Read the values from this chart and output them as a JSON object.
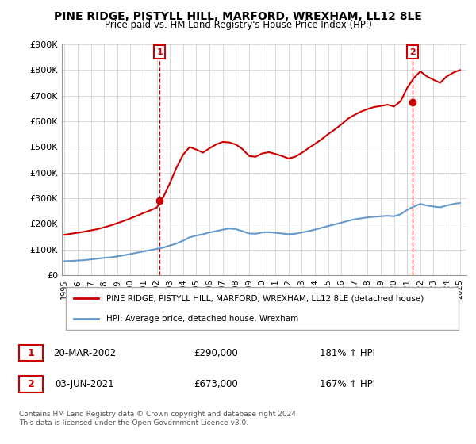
{
  "title": "PINE RIDGE, PISTYLL HILL, MARFORD, WREXHAM, LL12 8LE",
  "subtitle": "Price paid vs. HM Land Registry's House Price Index (HPI)",
  "legend_line1": "PINE RIDGE, PISTYLL HILL, MARFORD, WREXHAM, LL12 8LE (detached house)",
  "legend_line2": "HPI: Average price, detached house, Wrexham",
  "annotation1_label": "1",
  "annotation1_date": "20-MAR-2002",
  "annotation1_price": "£290,000",
  "annotation1_hpi": "181% ↑ HPI",
  "annotation2_label": "2",
  "annotation2_date": "03-JUN-2021",
  "annotation2_price": "£673,000",
  "annotation2_hpi": "167% ↑ HPI",
  "footer": "Contains HM Land Registry data © Crown copyright and database right 2024.\nThis data is licensed under the Open Government Licence v3.0.",
  "hpi_color": "#6699cc",
  "price_color": "#cc0000",
  "annotation_color": "#cc0000",
  "background_color": "#ffffff",
  "grid_color": "#cccccc",
  "ylim": [
    0,
    900000
  ],
  "yticks": [
    0,
    100000,
    200000,
    300000,
    400000,
    500000,
    600000,
    700000,
    800000,
    900000
  ],
  "ytick_labels": [
    "£0",
    "£100K",
    "£200K",
    "£300K",
    "£400K",
    "£500K",
    "£600K",
    "£700K",
    "£800K",
    "£900K"
  ],
  "year_start": 1995,
  "year_end": 2025,
  "sale1_year": 2002.22,
  "sale1_price": 290000,
  "sale2_year": 2021.42,
  "sale2_price": 673000,
  "hpi_years": [
    1995,
    1995.5,
    1996,
    1996.5,
    1997,
    1997.5,
    1998,
    1998.5,
    1999,
    1999.5,
    2000,
    2000.5,
    2001,
    2001.5,
    2002,
    2002.5,
    2003,
    2003.5,
    2004,
    2004.5,
    2005,
    2005.5,
    2006,
    2006.5,
    2007,
    2007.5,
    2008,
    2008.5,
    2009,
    2009.5,
    2010,
    2010.5,
    2011,
    2011.5,
    2012,
    2012.5,
    2013,
    2013.5,
    2014,
    2014.5,
    2015,
    2015.5,
    2016,
    2016.5,
    2017,
    2017.5,
    2018,
    2018.5,
    2019,
    2019.5,
    2020,
    2020.5,
    2021,
    2021.5,
    2022,
    2022.5,
    2023,
    2023.5,
    2024,
    2024.5,
    2025
  ],
  "hpi_values": [
    55000,
    56000,
    57500,
    59000,
    62000,
    65000,
    68000,
    70000,
    74000,
    78000,
    83000,
    88000,
    93000,
    98000,
    103000,
    108000,
    116000,
    124000,
    135000,
    148000,
    155000,
    160000,
    167000,
    172000,
    178000,
    182000,
    180000,
    172000,
    163000,
    162000,
    167000,
    168000,
    166000,
    163000,
    160000,
    162000,
    167000,
    172000,
    178000,
    185000,
    192000,
    198000,
    205000,
    212000,
    218000,
    222000,
    226000,
    228000,
    230000,
    232000,
    230000,
    238000,
    255000,
    268000,
    278000,
    272000,
    268000,
    265000,
    272000,
    278000,
    282000
  ],
  "price_years": [
    1995,
    1995.5,
    1996,
    1996.5,
    1997,
    1997.5,
    1998,
    1998.5,
    1999,
    1999.5,
    2000,
    2000.5,
    2001,
    2001.5,
    2002,
    2002.5,
    2003,
    2003.5,
    2004,
    2004.5,
    2005,
    2005.5,
    2006,
    2006.5,
    2007,
    2007.5,
    2008,
    2008.5,
    2009,
    2009.5,
    2010,
    2010.5,
    2011,
    2011.5,
    2012,
    2012.5,
    2013,
    2013.5,
    2014,
    2014.5,
    2015,
    2015.5,
    2016,
    2016.5,
    2017,
    2017.5,
    2018,
    2018.5,
    2019,
    2019.5,
    2020,
    2020.5,
    2021,
    2021.5,
    2022,
    2022.5,
    2023,
    2023.5,
    2024,
    2024.5,
    2025
  ],
  "price_values": [
    158000,
    162000,
    166000,
    170000,
    175000,
    180000,
    187000,
    194000,
    203000,
    212000,
    222000,
    232000,
    243000,
    253000,
    264000,
    305000,
    360000,
    420000,
    470000,
    500000,
    490000,
    478000,
    495000,
    510000,
    520000,
    518000,
    510000,
    492000,
    465000,
    462000,
    475000,
    480000,
    473000,
    465000,
    455000,
    462000,
    477000,
    495000,
    512000,
    530000,
    550000,
    568000,
    588000,
    610000,
    625000,
    638000,
    648000,
    656000,
    660000,
    665000,
    658000,
    678000,
    730000,
    768000,
    795000,
    775000,
    762000,
    750000,
    775000,
    790000,
    800000
  ]
}
